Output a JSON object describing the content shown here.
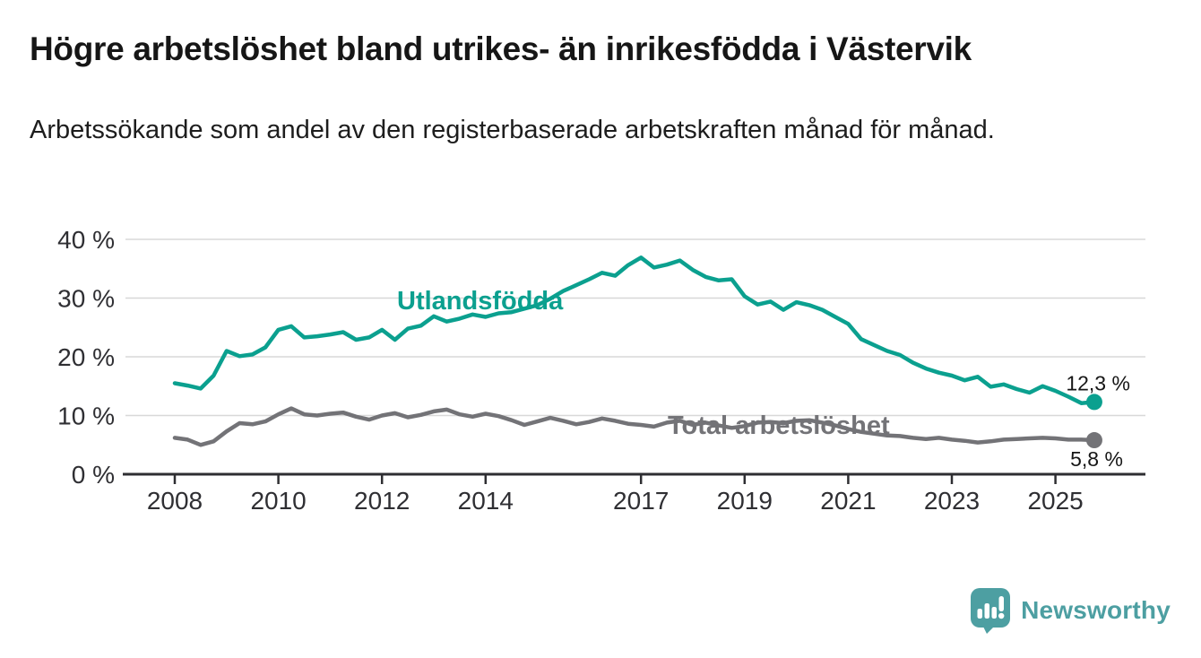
{
  "header": {
    "title": "Högre arbetslöshet bland utrikes- än inrikesfödda i Västervik",
    "subtitle": "Arbetssökande som andel av den registerbaserade arbetskraften månad för månad."
  },
  "chart_data": {
    "type": "line",
    "title": "Högre arbetslöshet bland utrikes- än inrikesfödda i Västervik",
    "subtitle": "Arbetssökande som andel av den registerbaserade arbetskraften månad för månad.",
    "unit": "%",
    "grid": true,
    "legend_position": "inline-labels",
    "xlim": [
      2008,
      2025.75
    ],
    "ylim": [
      0,
      44
    ],
    "y_ticks": [
      0,
      10,
      20,
      30,
      40
    ],
    "y_tick_labels": [
      "0 %",
      "10 %",
      "20 %",
      "30 %",
      "40 %"
    ],
    "x_tick_years": [
      2008,
      2010,
      2012,
      2014,
      2017,
      2019,
      2021,
      2023,
      2025
    ],
    "x_tick_labels": [
      "2008",
      "2010",
      "2012",
      "2014",
      "2017",
      "2019",
      "2021",
      "2023",
      "2025"
    ],
    "x": [
      2008,
      2008.25,
      2008.5,
      2008.75,
      2009,
      2009.25,
      2009.5,
      2009.75,
      2010,
      2010.25,
      2010.5,
      2010.75,
      2011,
      2011.25,
      2011.5,
      2011.75,
      2012,
      2012.25,
      2012.5,
      2012.75,
      2013,
      2013.25,
      2013.5,
      2013.75,
      2014,
      2014.25,
      2014.5,
      2014.75,
      2015,
      2015.25,
      2015.5,
      2015.75,
      2016,
      2016.25,
      2016.5,
      2016.75,
      2017,
      2017.25,
      2017.5,
      2017.75,
      2018,
      2018.25,
      2018.5,
      2018.75,
      2019,
      2019.25,
      2019.5,
      2019.75,
      2020,
      2020.25,
      2020.5,
      2020.75,
      2021,
      2021.25,
      2021.5,
      2021.75,
      2022,
      2022.25,
      2022.5,
      2022.75,
      2023,
      2023.25,
      2023.5,
      2023.75,
      2024,
      2024.25,
      2024.5,
      2024.75,
      2025,
      2025.25,
      2025.5,
      2025.75
    ],
    "series": [
      {
        "name": "Utlandsfödda",
        "color": "#0ba08f",
        "end_label": "12,3 %",
        "last_value": 12.3,
        "values": [
          15.5,
          15.1,
          14.6,
          16.8,
          21.0,
          20.1,
          20.4,
          21.6,
          24.6,
          25.2,
          23.3,
          23.5,
          23.8,
          24.2,
          22.9,
          23.3,
          24.6,
          22.9,
          24.8,
          25.3,
          26.9,
          26.0,
          26.5,
          27.2,
          26.8,
          27.4,
          27.6,
          28.2,
          28.8,
          29.9,
          31.2,
          32.2,
          33.2,
          34.3,
          33.8,
          35.6,
          36.9,
          35.2,
          35.7,
          36.4,
          34.8,
          33.6,
          33.0,
          33.2,
          30.3,
          28.9,
          29.4,
          28.0,
          29.3,
          28.8,
          28.0,
          26.8,
          25.6,
          23.0,
          22.0,
          21.0,
          20.3,
          19.0,
          18.0,
          17.3,
          16.8,
          16.0,
          16.6,
          14.9,
          15.3,
          14.5,
          13.9,
          15.0,
          14.2,
          13.2,
          12.1,
          12.3
        ]
      },
      {
        "name": "Total arbetslöshet",
        "color": "#737377",
        "end_label": "5,8 %",
        "last_value": 5.8,
        "values": [
          6.2,
          5.9,
          5.0,
          5.6,
          7.3,
          8.7,
          8.5,
          9.0,
          10.2,
          11.2,
          10.2,
          10.0,
          10.3,
          10.5,
          9.8,
          9.3,
          10.0,
          10.4,
          9.7,
          10.1,
          10.7,
          11.0,
          10.2,
          9.8,
          10.3,
          9.9,
          9.2,
          8.4,
          9.0,
          9.6,
          9.1,
          8.5,
          8.9,
          9.5,
          9.1,
          8.6,
          8.4,
          8.1,
          8.8,
          9.1,
          8.4,
          8.8,
          8.3,
          7.9,
          8.2,
          8.8,
          8.9,
          8.7,
          9.1,
          9.2,
          8.8,
          8.3,
          7.7,
          7.2,
          6.9,
          6.6,
          6.5,
          6.2,
          6.0,
          6.2,
          5.9,
          5.7,
          5.4,
          5.6,
          5.9,
          6.0,
          6.1,
          6.2,
          6.1,
          5.9,
          5.9,
          5.8
        ]
      }
    ],
    "colors": {
      "grid": "#d8d8d8",
      "axis": "#2e2e32",
      "tick_text": "#2f2f33",
      "value_text": "#161616"
    }
  },
  "footer": {
    "brand": "Newsworthy",
    "brand_color": "#4d9fa2",
    "icon": "speech-bubble-bar-chart"
  }
}
